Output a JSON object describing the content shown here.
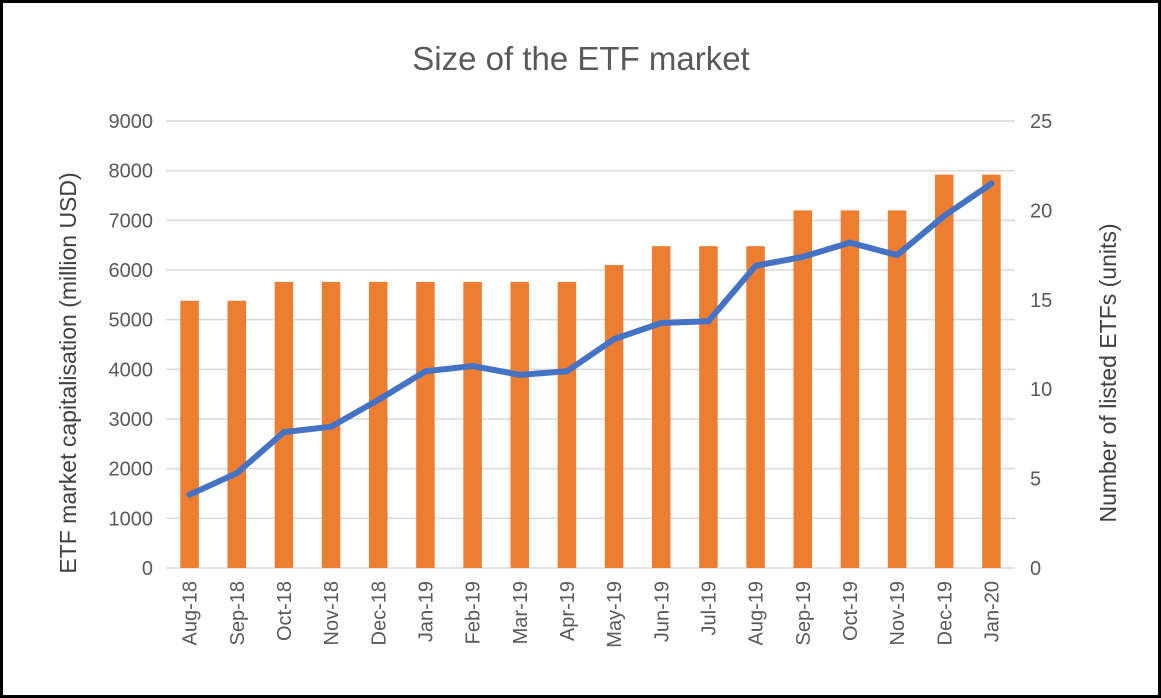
{
  "chart_data": {
    "type": "bar",
    "title": "Size of the ETF market",
    "xlabel": "",
    "ylabel": "ETF market capitalisation (million USD)",
    "y2label": "Number of listed ETFs (units)",
    "ylim": [
      0,
      9000
    ],
    "y2lim": [
      0,
      25
    ],
    "yticks": [
      "0",
      "1000",
      "2000",
      "3000",
      "4000",
      "5000",
      "6000",
      "7000",
      "8000",
      "9000"
    ],
    "y2ticks": [
      "0",
      "5",
      "10",
      "15",
      "20",
      "25"
    ],
    "grid": true,
    "legend": "none",
    "categories": [
      "Aug-18",
      "Sep-18",
      "Oct-18",
      "Nov-18",
      "Dec-18",
      "Jan-19",
      "Feb-19",
      "Mar-19",
      "Apr-19",
      "May-19",
      "Jun-19",
      "Jul-19",
      "Aug-19",
      "Sep-19",
      "Oct-19",
      "Nov-19",
      "Dec-19",
      "Jan-20"
    ],
    "series": [
      {
        "type": "bar",
        "axis": "primary",
        "color": "#ED7D31",
        "values": [
          5380,
          5380,
          5760,
          5760,
          5760,
          5760,
          5760,
          5760,
          5760,
          6100,
          6480,
          6480,
          6480,
          7200,
          7200,
          7200,
          7920,
          7920
        ]
      },
      {
        "type": "line",
        "axis": "secondary",
        "color": "#4472C4",
        "values": [
          4.1,
          5.3,
          7.6,
          7.9,
          9.4,
          11.0,
          11.3,
          10.8,
          11.0,
          12.8,
          13.7,
          13.8,
          16.9,
          17.4,
          18.2,
          17.5,
          19.7,
          21.5
        ]
      }
    ]
  }
}
